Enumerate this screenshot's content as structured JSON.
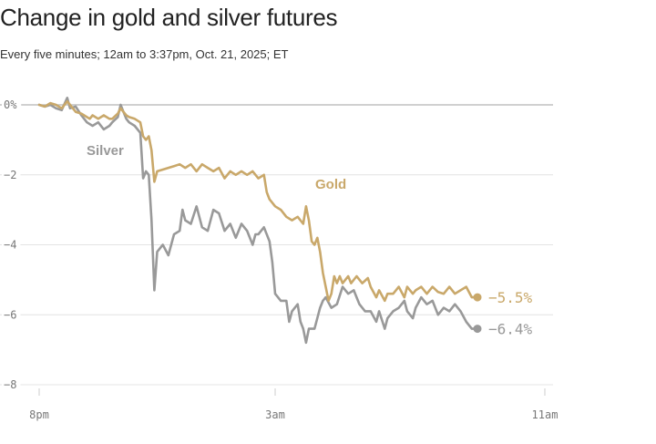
{
  "chart_data": {
    "type": "line",
    "title": "Change in gold and silver futures",
    "subtitle": "Every five minutes; 12am to 3:37pm, Oct. 21, 2025; ET",
    "x_ticks": [
      "8pm",
      "3am",
      "11am"
    ],
    "y_ticks": [
      {
        "value": 0,
        "label": "0%"
      },
      {
        "value": -2,
        "label": "−2"
      },
      {
        "value": -4,
        "label": "−4"
      },
      {
        "value": -6,
        "label": "−6"
      },
      {
        "value": -8,
        "label": "−8"
      }
    ],
    "ylim": [
      -8,
      0
    ],
    "x_range": [
      0,
      900
    ],
    "x_tick_positions": [
      0,
      420,
      900
    ],
    "grid": true,
    "series": [
      {
        "name": "Gold",
        "color": "#c9a86a",
        "end_label": "−5.5%",
        "points": [
          [
            0,
            0.0
          ],
          [
            10,
            -0.05
          ],
          [
            20,
            0.05
          ],
          [
            30,
            0.0
          ],
          [
            40,
            -0.1
          ],
          [
            50,
            0.1
          ],
          [
            55,
            0.0
          ],
          [
            65,
            -0.2
          ],
          [
            75,
            -0.25
          ],
          [
            80,
            -0.3
          ],
          [
            90,
            -0.4
          ],
          [
            95,
            -0.3
          ],
          [
            105,
            -0.4
          ],
          [
            115,
            -0.3
          ],
          [
            125,
            -0.4
          ],
          [
            130,
            -0.4
          ],
          [
            140,
            -0.25
          ],
          [
            145,
            -0.1
          ],
          [
            150,
            -0.2
          ],
          [
            155,
            -0.3
          ],
          [
            160,
            -0.35
          ],
          [
            170,
            -0.4
          ],
          [
            180,
            -0.5
          ],
          [
            185,
            -0.9
          ],
          [
            190,
            -1.0
          ],
          [
            195,
            -0.9
          ],
          [
            200,
            -1.3
          ],
          [
            205,
            -2.2
          ],
          [
            210,
            -1.9
          ],
          [
            220,
            -1.85
          ],
          [
            230,
            -1.8
          ],
          [
            240,
            -1.75
          ],
          [
            250,
            -1.7
          ],
          [
            260,
            -1.8
          ],
          [
            270,
            -1.7
          ],
          [
            280,
            -1.9
          ],
          [
            290,
            -1.7
          ],
          [
            300,
            -1.8
          ],
          [
            310,
            -1.9
          ],
          [
            320,
            -1.8
          ],
          [
            330,
            -2.1
          ],
          [
            340,
            -1.9
          ],
          [
            350,
            -2.0
          ],
          [
            360,
            -1.9
          ],
          [
            370,
            -2.0
          ],
          [
            380,
            -1.9
          ],
          [
            390,
            -2.1
          ],
          [
            400,
            -2.0
          ],
          [
            405,
            -2.5
          ],
          [
            410,
            -2.7
          ],
          [
            420,
            -2.9
          ],
          [
            430,
            -3.0
          ],
          [
            440,
            -3.2
          ],
          [
            450,
            -3.3
          ],
          [
            460,
            -3.2
          ],
          [
            470,
            -3.4
          ],
          [
            475,
            -2.9
          ],
          [
            480,
            -3.3
          ],
          [
            485,
            -3.9
          ],
          [
            490,
            -4.0
          ],
          [
            495,
            -3.8
          ],
          [
            500,
            -4.2
          ],
          [
            505,
            -4.8
          ],
          [
            510,
            -5.2
          ],
          [
            515,
            -5.6
          ],
          [
            520,
            -5.4
          ],
          [
            525,
            -4.9
          ],
          [
            530,
            -5.1
          ],
          [
            535,
            -4.9
          ],
          [
            540,
            -5.1
          ],
          [
            550,
            -4.9
          ],
          [
            555,
            -5.1
          ],
          [
            565,
            -4.9
          ],
          [
            575,
            -5.1
          ],
          [
            585,
            -4.95
          ],
          [
            590,
            -5.2
          ],
          [
            600,
            -5.5
          ],
          [
            605,
            -5.3
          ],
          [
            615,
            -5.6
          ],
          [
            620,
            -5.4
          ],
          [
            630,
            -5.4
          ],
          [
            640,
            -5.2
          ],
          [
            650,
            -5.5
          ],
          [
            655,
            -5.2
          ],
          [
            665,
            -5.4
          ],
          [
            670,
            -5.3
          ],
          [
            680,
            -5.2
          ],
          [
            690,
            -5.4
          ],
          [
            700,
            -5.2
          ],
          [
            710,
            -5.35
          ],
          [
            720,
            -5.4
          ],
          [
            730,
            -5.2
          ],
          [
            740,
            -5.4
          ],
          [
            750,
            -5.3
          ],
          [
            760,
            -5.2
          ],
          [
            770,
            -5.5
          ],
          [
            780,
            -5.5
          ]
        ]
      },
      {
        "name": "Silver",
        "color": "#999999",
        "end_label": "−6.4%",
        "points": [
          [
            0,
            0.0
          ],
          [
            10,
            -0.05
          ],
          [
            20,
            0.0
          ],
          [
            30,
            -0.1
          ],
          [
            40,
            -0.15
          ],
          [
            50,
            0.2
          ],
          [
            55,
            -0.1
          ],
          [
            65,
            -0.05
          ],
          [
            75,
            -0.3
          ],
          [
            85,
            -0.5
          ],
          [
            95,
            -0.6
          ],
          [
            105,
            -0.5
          ],
          [
            115,
            -0.7
          ],
          [
            125,
            -0.6
          ],
          [
            130,
            -0.5
          ],
          [
            140,
            -0.35
          ],
          [
            145,
            0.0
          ],
          [
            150,
            -0.2
          ],
          [
            155,
            -0.4
          ],
          [
            160,
            -0.5
          ],
          [
            170,
            -0.6
          ],
          [
            180,
            -0.8
          ],
          [
            185,
            -2.1
          ],
          [
            190,
            -1.9
          ],
          [
            195,
            -2.0
          ],
          [
            200,
            -3.3
          ],
          [
            205,
            -5.3
          ],
          [
            210,
            -4.2
          ],
          [
            220,
            -4.0
          ],
          [
            230,
            -4.3
          ],
          [
            240,
            -3.7
          ],
          [
            250,
            -3.6
          ],
          [
            255,
            -3.0
          ],
          [
            260,
            -3.3
          ],
          [
            270,
            -3.4
          ],
          [
            280,
            -2.9
          ],
          [
            290,
            -3.5
          ],
          [
            300,
            -3.6
          ],
          [
            310,
            -3.0
          ],
          [
            320,
            -3.1
          ],
          [
            330,
            -3.6
          ],
          [
            340,
            -3.4
          ],
          [
            350,
            -3.8
          ],
          [
            360,
            -3.4
          ],
          [
            370,
            -3.6
          ],
          [
            380,
            -4.0
          ],
          [
            385,
            -3.7
          ],
          [
            390,
            -3.7
          ],
          [
            400,
            -3.5
          ],
          [
            410,
            -3.9
          ],
          [
            415,
            -4.5
          ],
          [
            420,
            -5.4
          ],
          [
            430,
            -5.6
          ],
          [
            440,
            -5.6
          ],
          [
            445,
            -6.2
          ],
          [
            450,
            -5.9
          ],
          [
            460,
            -5.7
          ],
          [
            465,
            -6.2
          ],
          [
            470,
            -6.4
          ],
          [
            475,
            -6.8
          ],
          [
            480,
            -6.4
          ],
          [
            490,
            -6.4
          ],
          [
            500,
            -5.8
          ],
          [
            505,
            -5.6
          ],
          [
            510,
            -5.5
          ],
          [
            520,
            -5.8
          ],
          [
            530,
            -5.7
          ],
          [
            540,
            -5.2
          ],
          [
            550,
            -5.4
          ],
          [
            560,
            -5.3
          ],
          [
            565,
            -5.5
          ],
          [
            570,
            -5.7
          ],
          [
            580,
            -5.9
          ],
          [
            590,
            -5.9
          ],
          [
            600,
            -6.2
          ],
          [
            605,
            -5.9
          ],
          [
            615,
            -6.4
          ],
          [
            620,
            -6.1
          ],
          [
            630,
            -5.9
          ],
          [
            640,
            -5.8
          ],
          [
            650,
            -5.6
          ],
          [
            655,
            -5.9
          ],
          [
            665,
            -6.1
          ],
          [
            670,
            -5.8
          ],
          [
            680,
            -5.5
          ],
          [
            690,
            -5.7
          ],
          [
            700,
            -5.6
          ],
          [
            710,
            -6.0
          ],
          [
            720,
            -5.8
          ],
          [
            730,
            -5.9
          ],
          [
            740,
            -5.7
          ],
          [
            750,
            -5.9
          ],
          [
            760,
            -6.2
          ],
          [
            770,
            -6.4
          ],
          [
            780,
            -6.4
          ]
        ]
      }
    ]
  }
}
